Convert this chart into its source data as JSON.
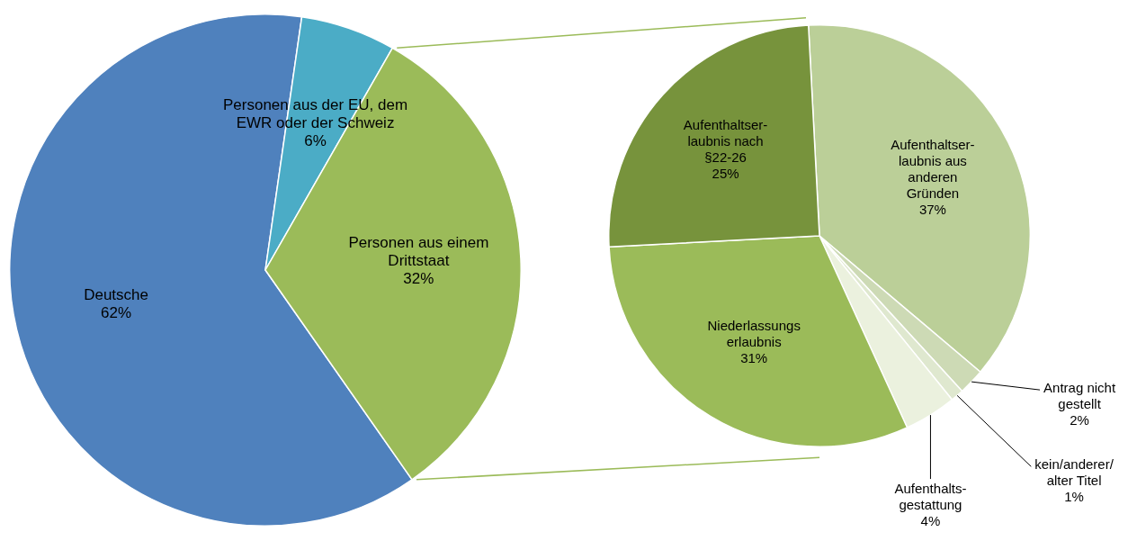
{
  "chart_data": [
    {
      "type": "pie",
      "categories": [
        "Deutsche",
        "Personen aus der EU, dem\nEWR oder der Schweiz",
        "Personen aus einem\nDrittstaat"
      ],
      "values": [
        62,
        6,
        32
      ],
      "colors": [
        "#4f81bd",
        "#4bacc6",
        "#9bbb59"
      ],
      "value_labels": [
        "62%",
        "6%",
        "32%"
      ]
    },
    {
      "type": "pie",
      "categories": [
        "Aufenthaltser-\nlaubnis aus\nanderen\nGründen",
        "Antrag nicht\ngestellt",
        "kein/anderer/\nalter Titel",
        "Aufenthalts-\ngestattung",
        "Niederlassungs\nerlaubnis",
        "Aufenthaltser-\nlaubnis nach\n§22-26"
      ],
      "values": [
        37,
        2,
        1,
        4,
        31,
        25
      ],
      "colors": [
        "#bbcf98",
        "#cddab5",
        "#dfe8cf",
        "#ebf1de",
        "#9bbb59",
        "#77933c"
      ],
      "value_labels": [
        "37%",
        "2%",
        "1%",
        "4%",
        "31%",
        "25%"
      ]
    }
  ]
}
